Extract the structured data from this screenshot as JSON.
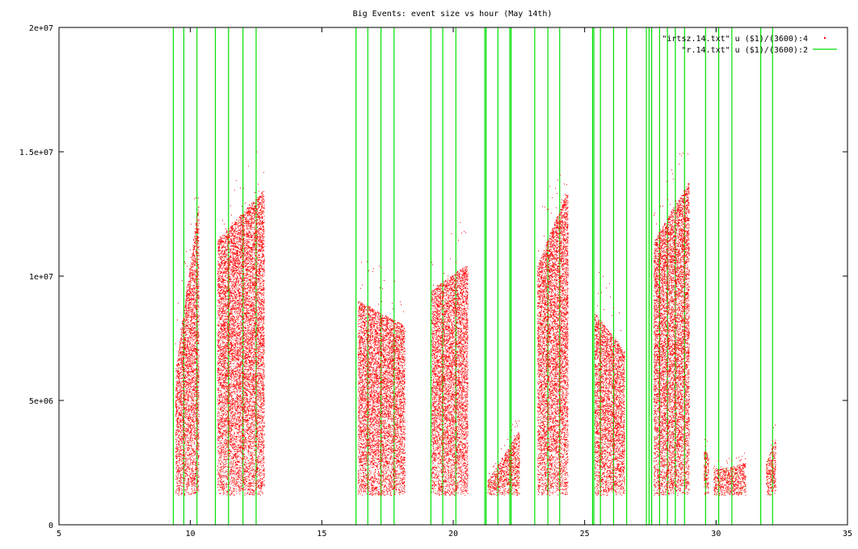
{
  "chart_data": {
    "type": "scatter",
    "title": "Big Events:  event size vs hour (May 14th)",
    "xlabel": "",
    "ylabel": "",
    "xlim": [
      5,
      35
    ],
    "ylim": [
      0,
      20000000
    ],
    "x_ticks": [
      5,
      10,
      15,
      20,
      25,
      30,
      35
    ],
    "x_tick_labels": [
      "5",
      "10",
      "15",
      "20",
      "25",
      "30",
      "35"
    ],
    "y_ticks": [
      0,
      5000000,
      10000000,
      15000000,
      20000000
    ],
    "y_tick_labels": [
      "0",
      "5e+06",
      "1e+07",
      "1.5e+07",
      "2e+07"
    ],
    "grid": false,
    "legend_position": "top-right",
    "series": [
      {
        "name": "\"irtsz.14.txt\" u ($1)/(3600):4",
        "style": "dots",
        "color": "#ff0000",
        "min_y": 1200000,
        "clusters": [
          {
            "x_start": 9.45,
            "x_end": 10.3,
            "top_start": 6500000,
            "top_end": 13000000
          },
          {
            "x_start": 11.05,
            "x_end": 12.8,
            "top_start": 11500000,
            "top_end": 13500000
          },
          {
            "x_start": 16.4,
            "x_end": 18.15,
            "top_start": 9000000,
            "top_end": 8000000
          },
          {
            "x_start": 19.2,
            "x_end": 20.55,
            "top_start": 9500000,
            "top_end": 10500000
          },
          {
            "x_start": 21.3,
            "x_end": 22.5,
            "top_start": 1800000,
            "top_end": 3800000
          },
          {
            "x_start": 23.2,
            "x_end": 24.35,
            "top_start": 10500000,
            "top_end": 13500000
          },
          {
            "x_start": 25.4,
            "x_end": 26.5,
            "top_start": 8500000,
            "top_end": 7000000
          },
          {
            "x_start": 27.65,
            "x_end": 28.95,
            "top_start": 11500000,
            "top_end": 13800000
          },
          {
            "x_start": 29.55,
            "x_end": 29.7,
            "top_start": 3000000,
            "top_end": 2800000
          },
          {
            "x_start": 29.9,
            "x_end": 31.1,
            "top_start": 2200000,
            "top_end": 2500000
          },
          {
            "x_start": 31.9,
            "x_end": 32.25,
            "top_start": 2500000,
            "top_end": 3500000
          }
        ]
      },
      {
        "name": "\"r.14.txt\" u ($1)/(3600):2",
        "style": "impulses",
        "color": "#00cc00",
        "x": [
          9.35,
          9.75,
          10.25,
          10.95,
          11.45,
          12.0,
          12.5,
          16.3,
          16.75,
          17.25,
          17.75,
          19.15,
          19.6,
          20.1,
          21.2,
          21.25,
          21.7,
          22.15,
          22.2,
          23.1,
          23.6,
          24.05,
          25.3,
          25.35,
          25.6,
          26.1,
          26.6,
          27.35,
          27.45,
          27.55,
          27.85,
          28.15,
          28.45,
          28.8,
          29.6,
          30.1,
          30.6,
          31.7,
          32.15
        ],
        "y": [
          20000000,
          20000000,
          20000000,
          20000000,
          20000000,
          20000000,
          20000000,
          20000000,
          20000000,
          20000000,
          20000000,
          20000000,
          20000000,
          20000000,
          20000000,
          20000000,
          20000000,
          20000000,
          20000000,
          20000000,
          20000000,
          20000000,
          20000000,
          20000000,
          20000000,
          20000000,
          20000000,
          20000000,
          20000000,
          20000000,
          20000000,
          20000000,
          20000000,
          20000000,
          20000000,
          20000000,
          20000000,
          20000000,
          20000000
        ]
      }
    ]
  }
}
